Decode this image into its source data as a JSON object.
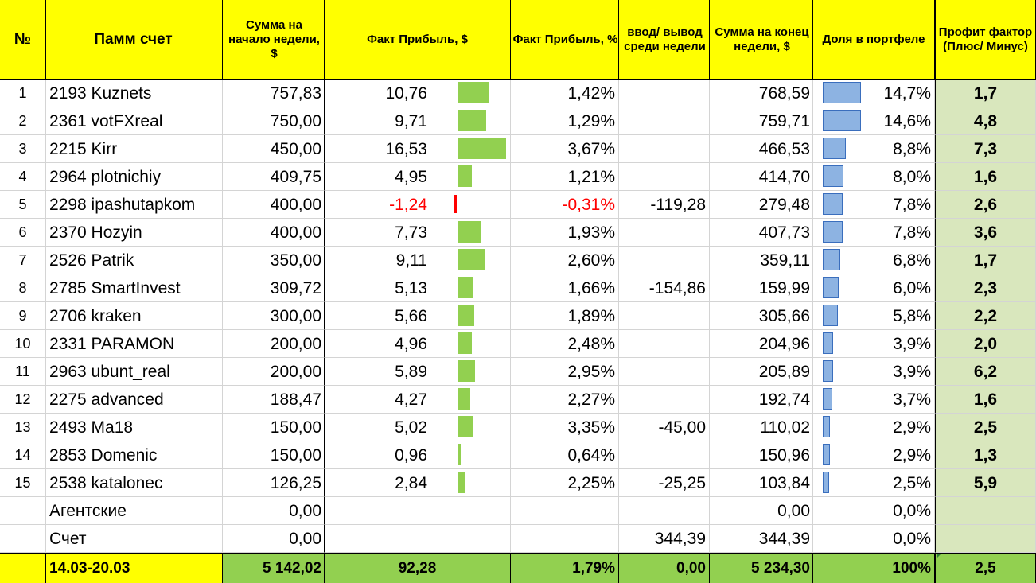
{
  "headers": {
    "num": "№",
    "name": "Памм счет",
    "start": "Сумма на начало недели, $",
    "fact": "Факт Прибыль, $",
    "pct": "Факт Прибыль, %",
    "io": "ввод/ вывод среди недели",
    "end": "Сумма на конец недели, $",
    "share": "Доля в портфеле",
    "pf": "Профит фактор (Плюс/ Минус)"
  },
  "rows": [
    {
      "num": "1",
      "name": "2193 Kuznets",
      "start": "757,83",
      "fact": "10,76",
      "fact_value": 10.76,
      "pct": "1,42%",
      "io": "",
      "end": "768,59",
      "share": "14,7%",
      "share_value": 14.7,
      "pf": "1,7"
    },
    {
      "num": "2",
      "name": "2361 votFXreal",
      "start": "750,00",
      "fact": "9,71",
      "fact_value": 9.71,
      "pct": "1,29%",
      "io": "",
      "end": "759,71",
      "share": "14,6%",
      "share_value": 14.6,
      "pf": "4,8"
    },
    {
      "num": "3",
      "name": "2215 Kirr",
      "start": "450,00",
      "fact": "16,53",
      "fact_value": 16.53,
      "pct": "3,67%",
      "io": "",
      "end": "466,53",
      "share": "8,8%",
      "share_value": 8.8,
      "pf": "7,3"
    },
    {
      "num": "4",
      "name": "2964 plotnichiy",
      "start": "409,75",
      "fact": "4,95",
      "fact_value": 4.95,
      "pct": "1,21%",
      "io": "",
      "end": "414,70",
      "share": "8,0%",
      "share_value": 8.0,
      "pf": "1,6"
    },
    {
      "num": "5",
      "name": "2298 ipashutapkom",
      "start": "400,00",
      "fact": "-1,24",
      "fact_value": -1.24,
      "pct": "-0,31%",
      "io": "-119,28",
      "end": "279,48",
      "share": "7,8%",
      "share_value": 7.8,
      "pf": "2,6"
    },
    {
      "num": "6",
      "name": "2370 Hozyin",
      "start": "400,00",
      "fact": "7,73",
      "fact_value": 7.73,
      "pct": "1,93%",
      "io": "",
      "end": "407,73",
      "share": "7,8%",
      "share_value": 7.8,
      "pf": "3,6"
    },
    {
      "num": "7",
      "name": "2526 Patrik",
      "start": "350,00",
      "fact": "9,11",
      "fact_value": 9.11,
      "pct": "2,60%",
      "io": "",
      "end": "359,11",
      "share": "6,8%",
      "share_value": 6.8,
      "pf": "1,7"
    },
    {
      "num": "8",
      "name": "2785 SmartInvest",
      "start": "309,72",
      "fact": "5,13",
      "fact_value": 5.13,
      "pct": "1,66%",
      "io": "-154,86",
      "end": "159,99",
      "share": "6,0%",
      "share_value": 6.0,
      "pf": "2,3"
    },
    {
      "num": "9",
      "name": "2706 kraken",
      "start": "300,00",
      "fact": "5,66",
      "fact_value": 5.66,
      "pct": "1,89%",
      "io": "",
      "end": "305,66",
      "share": "5,8%",
      "share_value": 5.8,
      "pf": "2,2"
    },
    {
      "num": "10",
      "name": "2331 PARAMON",
      "start": "200,00",
      "fact": "4,96",
      "fact_value": 4.96,
      "pct": "2,48%",
      "io": "",
      "end": "204,96",
      "share": "3,9%",
      "share_value": 3.9,
      "pf": "2,0"
    },
    {
      "num": "11",
      "name": "2963 ubunt_real",
      "start": "200,00",
      "fact": "5,89",
      "fact_value": 5.89,
      "pct": "2,95%",
      "io": "",
      "end": "205,89",
      "share": "3,9%",
      "share_value": 3.9,
      "pf": "6,2"
    },
    {
      "num": "12",
      "name": "2275 advanced",
      "start": "188,47",
      "fact": "4,27",
      "fact_value": 4.27,
      "pct": "2,27%",
      "io": "",
      "end": "192,74",
      "share": "3,7%",
      "share_value": 3.7,
      "pf": "1,6"
    },
    {
      "num": "13",
      "name": "2493 Ma18",
      "start": "150,00",
      "fact": "5,02",
      "fact_value": 5.02,
      "pct": "3,35%",
      "io": "-45,00",
      "end": "110,02",
      "share": "2,9%",
      "share_value": 2.9,
      "pf": "2,5"
    },
    {
      "num": "14",
      "name": "2853 Domenic",
      "start": "150,00",
      "fact": "0,96",
      "fact_value": 0.96,
      "pct": "0,64%",
      "io": "",
      "end": "150,96",
      "share": "2,9%",
      "share_value": 2.9,
      "pf": "1,3"
    },
    {
      "num": "15",
      "name": "2538 katalonec",
      "start": "126,25",
      "fact": "2,84",
      "fact_value": 2.84,
      "pct": "2,25%",
      "io": "-25,25",
      "end": "103,84",
      "share": "2,5%",
      "share_value": 2.5,
      "pf": "5,9"
    },
    {
      "num": "",
      "name": "Агентские",
      "start": "0,00",
      "fact": "",
      "fact_value": null,
      "pct": "",
      "io": "",
      "end": "0,00",
      "share": "0,0%",
      "share_value": 0,
      "pf": ""
    },
    {
      "num": "",
      "name": "Счет",
      "start": "0,00",
      "fact": "",
      "fact_value": null,
      "pct": "",
      "io": "344,39",
      "end": "344,39",
      "share": "0,0%",
      "share_value": 0,
      "pf": ""
    }
  ],
  "totals": {
    "period": "14.03-20.03",
    "start": "5 142,02",
    "fact": "92,28",
    "pct": "1,79%",
    "io": "0,00",
    "end": "5 234,30",
    "share": "100%",
    "pf": "2,5"
  },
  "colors": {
    "header_bg": "#ffff00",
    "positive_bar": "#92d050",
    "negative_bar": "#ff0000",
    "share_bar": "#8db3e2",
    "pf_bg": "#d9e7bd",
    "total_bg": "#92d050"
  }
}
